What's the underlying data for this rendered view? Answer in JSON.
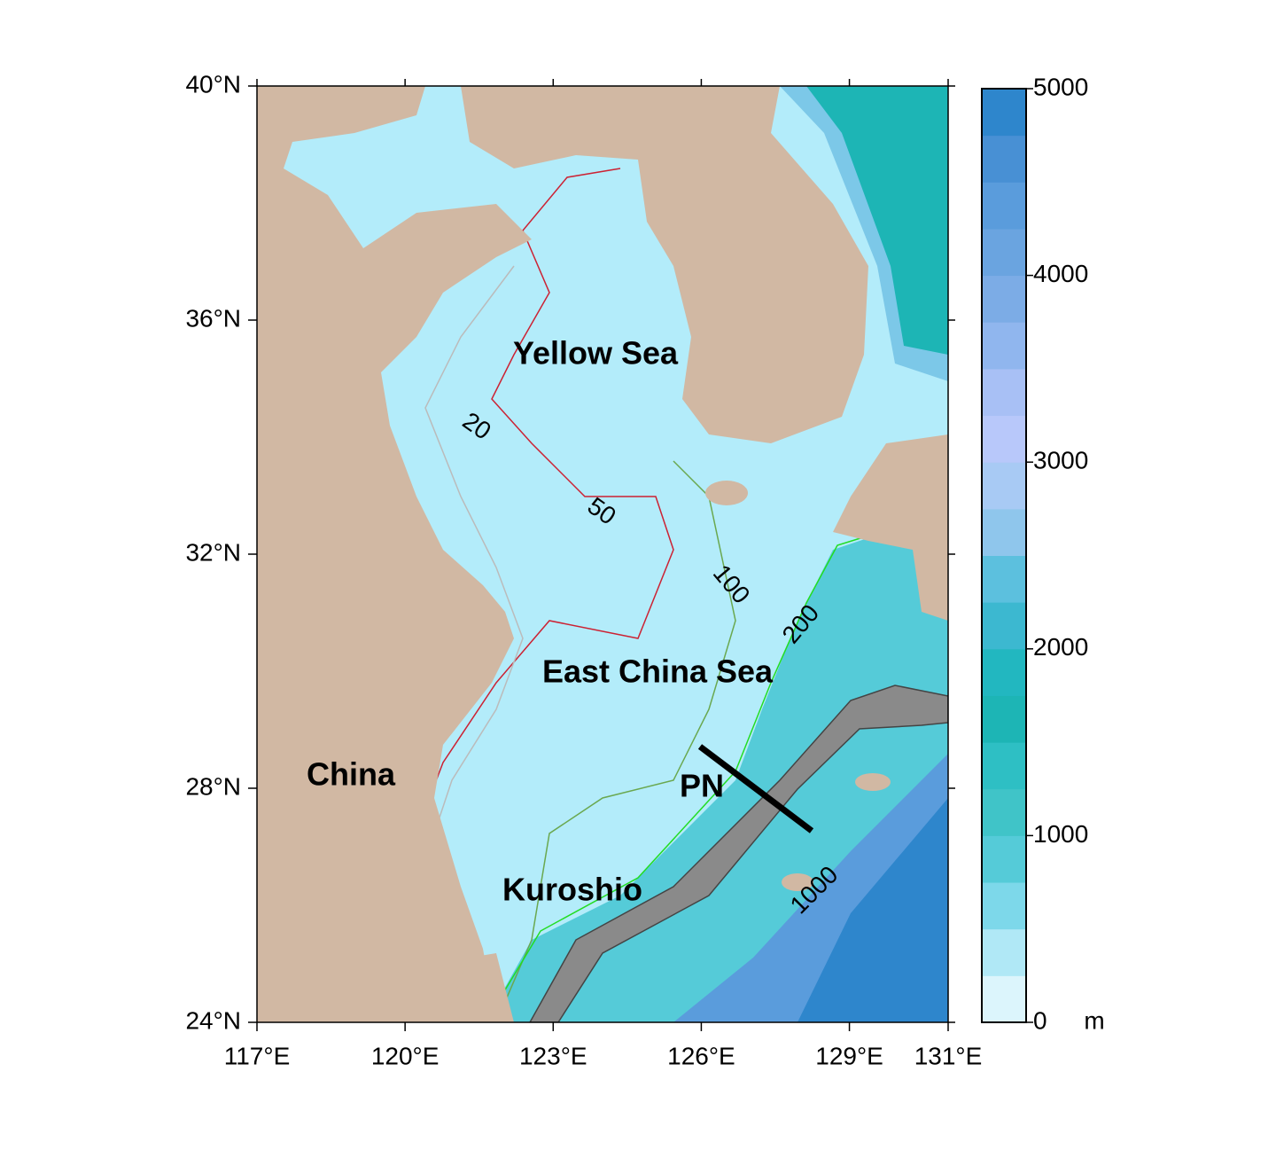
{
  "map": {
    "xlim": [
      117,
      131
    ],
    "ylim": [
      24,
      40
    ],
    "xticks": [
      {
        "value": 117,
        "label": "117°E"
      },
      {
        "value": 120,
        "label": "120°E"
      },
      {
        "value": 123,
        "label": "123°E"
      },
      {
        "value": 126,
        "label": "126°E"
      },
      {
        "value": 129,
        "label": "129°E"
      },
      {
        "value": 131,
        "label": "131°E"
      }
    ],
    "yticks": [
      {
        "value": 24,
        "label": "24°N"
      },
      {
        "value": 28,
        "label": "28°N"
      },
      {
        "value": 32,
        "label": "32°N"
      },
      {
        "value": 36,
        "label": "36°N"
      },
      {
        "value": 40,
        "label": "40°N"
      }
    ],
    "places": [
      "Yellow Sea",
      "East China Sea",
      "China",
      "Kuroshio",
      "PN"
    ],
    "contour_labels": [
      20,
      50,
      100,
      200,
      1000
    ],
    "land_color": "#d1b8a3",
    "sea_color": "#b3ecfa"
  },
  "colorbar": {
    "lim": [
      0,
      5000
    ],
    "ticks": [
      0,
      1000,
      2000,
      3000,
      4000,
      5000
    ],
    "unit": "m",
    "colors": [
      "#dcf5fc",
      "#b0e8f6",
      "#7dd8ea",
      "#55cbd8",
      "#40c4c8",
      "#2ebfc4",
      "#1db5b5",
      "#22b7c0",
      "#3cb8d0",
      "#5cc0de",
      "#8fc6ec",
      "#a8caf4",
      "#b8c8fa",
      "#a8c0f5",
      "#90b6ee",
      "#7cace6",
      "#6aa4e0",
      "#5a9cdc",
      "#4890d4",
      "#2e86cc"
    ]
  }
}
